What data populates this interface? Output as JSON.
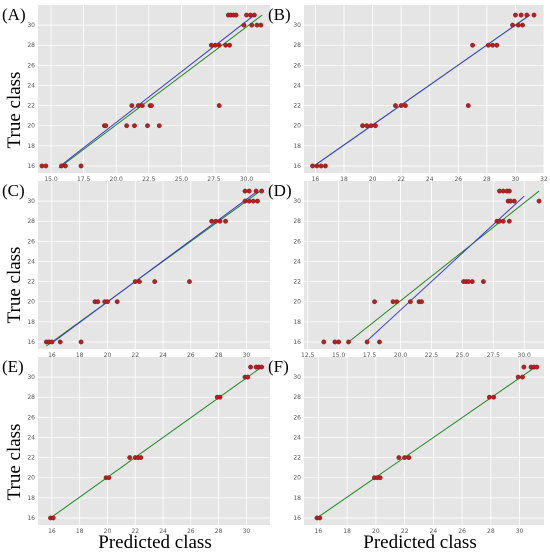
{
  "figure": {
    "ylabel": "True class",
    "xlabel": "Predicted class",
    "colors": {
      "background": "#e5e5e5",
      "grid": "#ffffff",
      "points": "#b22222",
      "fit_line": "#3b3bd6",
      "identity_line": "#1f8a1f"
    }
  },
  "chart_data": [
    {
      "type": "scatter",
      "panel": "(A)",
      "grid": true,
      "xlim": [
        14.0,
        31.8
      ],
      "ylim": [
        15.3,
        32
      ],
      "xticks": [
        15.0,
        17.5,
        20.0,
        22.5,
        25.0,
        27.5,
        30.0
      ],
      "xtick_labels": [
        "15.0",
        "17.5",
        "20.0",
        "22.5",
        "25.0",
        "27.5",
        "30.0"
      ],
      "yticks": [
        16,
        18,
        20,
        22,
        24,
        26,
        28,
        30
      ],
      "ytick_labels": [
        "16",
        "18",
        "20",
        "22",
        "24",
        "26",
        "28",
        "30"
      ],
      "points": [
        [
          14.3,
          16
        ],
        [
          14.6,
          16
        ],
        [
          15.8,
          16
        ],
        [
          16.1,
          16
        ],
        [
          17.3,
          16
        ],
        [
          19.1,
          20
        ],
        [
          19.2,
          20
        ],
        [
          20.8,
          20
        ],
        [
          21.4,
          20
        ],
        [
          22.4,
          20
        ],
        [
          23.3,
          20
        ],
        [
          21.2,
          22
        ],
        [
          21.7,
          22
        ],
        [
          22.0,
          22
        ],
        [
          22.6,
          22
        ],
        [
          22.7,
          22
        ],
        [
          27.9,
          22
        ],
        [
          27.3,
          28
        ],
        [
          27.6,
          28
        ],
        [
          27.9,
          28
        ],
        [
          28.4,
          28
        ],
        [
          28.7,
          28
        ],
        [
          29.8,
          30
        ],
        [
          30.4,
          30
        ],
        [
          30.8,
          30
        ],
        [
          31.1,
          30
        ],
        [
          28.6,
          31
        ],
        [
          28.8,
          31
        ],
        [
          29.0,
          31
        ],
        [
          29.2,
          31
        ],
        [
          30.0,
          31
        ],
        [
          30.3,
          31
        ],
        [
          30.6,
          31
        ]
      ],
      "fit_line": [
        [
          15.7,
          16
        ],
        [
          30.6,
          31
        ]
      ],
      "identity_line": [
        [
          15.6,
          15.8
        ],
        [
          31.2,
          31
        ]
      ]
    },
    {
      "type": "scatter",
      "panel": "(B)",
      "grid": true,
      "xlim": [
        15.2,
        32.0
      ],
      "ylim": [
        15.3,
        32
      ],
      "xticks": [
        16,
        18,
        20,
        22,
        24,
        26,
        28,
        30,
        32
      ],
      "xtick_labels": [
        "16",
        "18",
        "20",
        "22",
        "24",
        "26",
        "28",
        "30",
        "32"
      ],
      "yticks": [
        16,
        18,
        20,
        22,
        24,
        26,
        28,
        30
      ],
      "ytick_labels": [
        "16",
        "18",
        "20",
        "22",
        "24",
        "26",
        "28",
        "30"
      ],
      "points": [
        [
          15.8,
          16
        ],
        [
          16.1,
          16
        ],
        [
          16.4,
          16
        ],
        [
          16.7,
          16
        ],
        [
          19.3,
          20
        ],
        [
          19.6,
          20
        ],
        [
          19.9,
          20
        ],
        [
          20.2,
          20
        ],
        [
          21.6,
          22
        ],
        [
          22.0,
          22
        ],
        [
          22.3,
          22
        ],
        [
          26.7,
          22
        ],
        [
          27.0,
          28
        ],
        [
          28.1,
          28
        ],
        [
          28.4,
          28
        ],
        [
          28.7,
          28
        ],
        [
          29.8,
          30
        ],
        [
          30.2,
          30
        ],
        [
          30.5,
          30
        ],
        [
          30.0,
          31
        ],
        [
          30.4,
          31
        ],
        [
          30.8,
          31
        ],
        [
          31.3,
          31
        ]
      ],
      "fit_line": [
        [
          15.9,
          16
        ],
        [
          31.0,
          31
        ]
      ],
      "identity_line": [
        [
          15.9,
          16
        ],
        [
          31.0,
          31
        ]
      ]
    },
    {
      "type": "scatter",
      "panel": "(C)",
      "grid": true,
      "xlim": [
        15.0,
        31.7
      ],
      "ylim": [
        15.3,
        32
      ],
      "xticks": [
        16,
        18,
        20,
        22,
        24,
        26,
        28,
        30
      ],
      "xtick_labels": [
        "16",
        "18",
        "20",
        "22",
        "24",
        "26",
        "28",
        "30"
      ],
      "yticks": [
        16,
        18,
        20,
        22,
        24,
        26,
        28,
        30
      ],
      "ytick_labels": [
        "16",
        "18",
        "20",
        "22",
        "24",
        "26",
        "28",
        "30"
      ],
      "points": [
        [
          15.6,
          16
        ],
        [
          15.8,
          16
        ],
        [
          16.0,
          16
        ],
        [
          16.6,
          16
        ],
        [
          18.1,
          16
        ],
        [
          19.1,
          20
        ],
        [
          19.3,
          20
        ],
        [
          19.8,
          20
        ],
        [
          20.0,
          20
        ],
        [
          20.7,
          20
        ],
        [
          22.0,
          22
        ],
        [
          22.3,
          22
        ],
        [
          23.4,
          22
        ],
        [
          25.9,
          22
        ],
        [
          27.5,
          28
        ],
        [
          27.8,
          28
        ],
        [
          28.1,
          28
        ],
        [
          28.5,
          28
        ],
        [
          29.9,
          30
        ],
        [
          30.2,
          30
        ],
        [
          30.5,
          30
        ],
        [
          30.8,
          30
        ],
        [
          29.9,
          31
        ],
        [
          30.2,
          31
        ],
        [
          30.7,
          31
        ],
        [
          31.1,
          31
        ]
      ],
      "fit_line": [
        [
          16.1,
          16
        ],
        [
          30.8,
          31
        ]
      ],
      "identity_line": [
        [
          15.6,
          15.6
        ],
        [
          31.2,
          31.2
        ]
      ]
    },
    {
      "type": "scatter",
      "panel": "(D)",
      "grid": true,
      "xlim": [
        12.2,
        31.6
      ],
      "ylim": [
        15.3,
        32
      ],
      "xticks": [
        12.5,
        15.0,
        17.5,
        20.0,
        22.5,
        25.0,
        27.5,
        30.0
      ],
      "xtick_labels": [
        "12.5",
        "15.0",
        "17.5",
        "20.0",
        "22.5",
        "25.0",
        "27.5",
        "30.0"
      ],
      "yticks": [
        16,
        18,
        20,
        22,
        24,
        26,
        28,
        30
      ],
      "ytick_labels": [
        "16",
        "18",
        "20",
        "22",
        "24",
        "26",
        "28",
        "30"
      ],
      "points": [
        [
          13.8,
          16
        ],
        [
          14.7,
          16
        ],
        [
          15.0,
          16
        ],
        [
          15.8,
          16
        ],
        [
          17.3,
          16
        ],
        [
          18.3,
          16
        ],
        [
          17.9,
          20
        ],
        [
          19.4,
          20
        ],
        [
          19.7,
          20
        ],
        [
          20.8,
          20
        ],
        [
          21.5,
          20
        ],
        [
          21.7,
          20
        ],
        [
          25.1,
          22
        ],
        [
          25.3,
          22
        ],
        [
          25.5,
          22
        ],
        [
          25.8,
          22
        ],
        [
          26.7,
          22
        ],
        [
          27.8,
          28
        ],
        [
          28.0,
          28
        ],
        [
          28.3,
          28
        ],
        [
          28.8,
          28
        ],
        [
          28.7,
          30
        ],
        [
          28.9,
          30
        ],
        [
          29.2,
          30
        ],
        [
          31.2,
          30
        ],
        [
          28.0,
          31
        ],
        [
          28.3,
          31
        ],
        [
          28.6,
          31
        ],
        [
          28.8,
          31
        ]
      ],
      "fit_line": [
        [
          17.2,
          16
        ],
        [
          30.0,
          30.5
        ]
      ],
      "identity_line": [
        [
          15.8,
          16
        ],
        [
          31.2,
          31
        ]
      ]
    },
    {
      "type": "scatter",
      "panel": "(E)",
      "grid": true,
      "xlim": [
        15.0,
        31.7
      ],
      "ylim": [
        15.3,
        32
      ],
      "xticks": [
        16,
        18,
        20,
        22,
        24,
        26,
        28,
        30
      ],
      "xtick_labels": [
        "16",
        "18",
        "20",
        "22",
        "24",
        "26",
        "28",
        "30"
      ],
      "yticks": [
        16,
        18,
        20,
        22,
        24,
        26,
        28,
        30
      ],
      "ytick_labels": [
        "16",
        "18",
        "20",
        "22",
        "24",
        "26",
        "28",
        "30"
      ],
      "points": [
        [
          15.9,
          16
        ],
        [
          16.1,
          16
        ],
        [
          19.9,
          20
        ],
        [
          20.1,
          20
        ],
        [
          21.6,
          22
        ],
        [
          22.0,
          22
        ],
        [
          22.2,
          22
        ],
        [
          22.4,
          22
        ],
        [
          27.9,
          28
        ],
        [
          28.1,
          28
        ],
        [
          29.9,
          30
        ],
        [
          30.1,
          30
        ],
        [
          30.3,
          31
        ],
        [
          30.7,
          31
        ],
        [
          30.9,
          31
        ],
        [
          31.1,
          31
        ]
      ],
      "identity_line": [
        [
          15.9,
          16
        ],
        [
          31.1,
          31
        ]
      ]
    },
    {
      "type": "scatter",
      "panel": "(F)",
      "grid": true,
      "xlim": [
        15.0,
        31.7
      ],
      "ylim": [
        15.3,
        32
      ],
      "xticks": [
        16,
        18,
        20,
        22,
        24,
        26,
        28,
        30
      ],
      "xtick_labels": [
        "16",
        "18",
        "20",
        "22",
        "24",
        "26",
        "28",
        "30"
      ],
      "yticks": [
        16,
        18,
        20,
        22,
        24,
        26,
        28,
        30
      ],
      "ytick_labels": [
        "16",
        "18",
        "20",
        "22",
        "24",
        "26",
        "28",
        "30"
      ],
      "points": [
        [
          15.9,
          16
        ],
        [
          16.1,
          16
        ],
        [
          19.9,
          20
        ],
        [
          20.1,
          20
        ],
        [
          20.3,
          20
        ],
        [
          21.6,
          22
        ],
        [
          22.0,
          22
        ],
        [
          22.3,
          22
        ],
        [
          27.9,
          28
        ],
        [
          28.2,
          28
        ],
        [
          29.9,
          30
        ],
        [
          30.2,
          30
        ],
        [
          30.3,
          31
        ],
        [
          30.8,
          31
        ],
        [
          31.0,
          31
        ],
        [
          31.2,
          31
        ]
      ],
      "identity_line": [
        [
          15.9,
          16
        ],
        [
          31.1,
          31
        ]
      ]
    }
  ]
}
